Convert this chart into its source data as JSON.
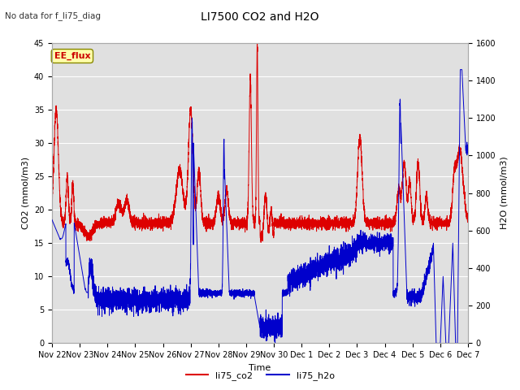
{
  "title": "LI7500 CO2 and H2O",
  "top_left_text": "No data for f_li75_diag",
  "xlabel": "Time",
  "ylabel_left": "CO2 (mmol/m3)",
  "ylabel_right": "H2O (mmol/m3)",
  "ylim_left": [
    0,
    45
  ],
  "ylim_right": [
    0,
    1600
  ],
  "yticks_left": [
    0,
    5,
    10,
    15,
    20,
    25,
    30,
    35,
    40,
    45
  ],
  "yticks_right": [
    0,
    200,
    400,
    600,
    800,
    1000,
    1200,
    1400,
    1600
  ],
  "co2_color": "#dd0000",
  "h2o_color": "#0000cc",
  "background_color": "#ffffff",
  "axes_bg_color": "#e0e0e0",
  "grid_color": "#ffffff",
  "ee_flux_box_color": "#ffffaa",
  "ee_flux_box_edge": "#888800",
  "legend_labels": [
    "li75_co2",
    "li75_h2o"
  ],
  "n_days": 15,
  "tick_labels": [
    "Nov 22",
    "Nov 23",
    "Nov 24",
    "Nov 25",
    "Nov 26",
    "Nov 27",
    "Nov 28",
    "Nov 29",
    "Nov 30",
    "Dec 1",
    "Dec 2",
    "Dec 3",
    "Dec 4",
    "Dec 5",
    "Dec 6",
    "Dec 7"
  ]
}
